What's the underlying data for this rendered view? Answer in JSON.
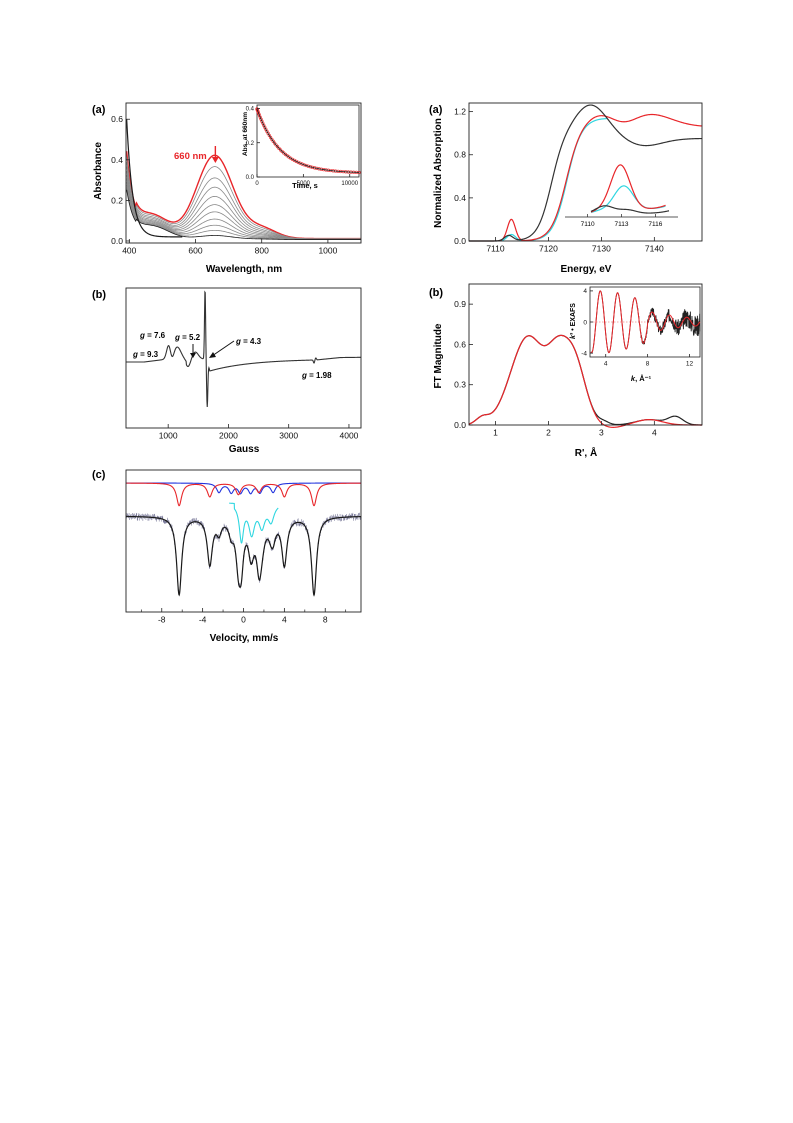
{
  "panels": {
    "uv": {
      "label": "(a)"
    },
    "epr": {
      "label": "(b)"
    },
    "mossbauer": {
      "label": "(c)"
    },
    "xanes": {
      "label": "(a)"
    },
    "exafs": {
      "label": "(b)"
    }
  },
  "colors": {
    "red": "#e8262a",
    "black": "#1a1a1a",
    "gray": "#8a8a8a",
    "cyan": "#2fd6e0",
    "blue": "#2233dd",
    "data_points": "#7a7a9a"
  },
  "chart_data": [
    {
      "id": "uv",
      "type": "line",
      "xlabel": "Wavelength, nm",
      "ylabel": "Absorbance",
      "xlim": [
        390,
        1100
      ],
      "ylim": [
        -0.01,
        0.68
      ],
      "xticks": [
        "400",
        "600",
        "800",
        "1000"
      ],
      "yticks": [
        "0.0",
        "0.2",
        "0.4",
        "0.6"
      ],
      "annotation": "660 nm",
      "series_peak_660": [
        0.41,
        0.355,
        0.3,
        0.255,
        0.21,
        0.17,
        0.135,
        0.1,
        0.07,
        0.045,
        0.02
      ],
      "inset": {
        "type": "scatter",
        "xlabel": "Time, s",
        "ylabel": "Abs. at 660nm",
        "xlim": [
          0,
          11000
        ],
        "ylim": [
          0,
          0.42
        ],
        "xticks": [
          "0",
          "5000",
          "10000"
        ],
        "yticks": [
          "0.0",
          "0.2",
          "0.4"
        ],
        "decay": {
          "A0": 0.375,
          "tau": 2500,
          "offset": 0.022
        }
      }
    },
    {
      "id": "epr",
      "type": "line",
      "xlabel": "Gauss",
      "xlim": [
        300,
        4200
      ],
      "xticks": [
        "1000",
        "2000",
        "3000",
        "4000"
      ],
      "annotations": [
        {
          "label": "g",
          "value": " = 9.3"
        },
        {
          "label": "g",
          "value": " = 7.6"
        },
        {
          "label": "g",
          "value": " = 5.2"
        },
        {
          "label": "g",
          "value": " = 4.3"
        },
        {
          "label": "g",
          "value": " = 1.98"
        }
      ]
    },
    {
      "id": "mossbauer",
      "type": "line",
      "xlabel": "Velocity, mm/s",
      "xlim": [
        -11.5,
        11.5
      ],
      "xticks": [
        "-8",
        "-4",
        "0",
        "4",
        "8"
      ],
      "sextet_red": [
        -6.3,
        -3.3,
        -0.5,
        1.5,
        4.0,
        6.9
      ],
      "sextet_blue": [
        -2.4,
        -1.2,
        -0.3,
        0.7,
        1.6,
        2.9
      ],
      "quadrupole_cyan": [
        -0.2,
        0.8,
        1.8,
        2.7
      ]
    },
    {
      "id": "xanes",
      "type": "line",
      "xlabel": "Energy, eV",
      "ylabel": "Normalized Absorption",
      "xlim": [
        7105,
        7149
      ],
      "ylim": [
        0,
        1.28
      ],
      "xticks": [
        "7110",
        "7120",
        "7130",
        "7140"
      ],
      "yticks": [
        "0.0",
        "0.4",
        "0.8",
        "1.2"
      ],
      "inset": {
        "xticks": [
          "7110",
          "7113",
          "7116"
        ],
        "xlim": [
          7108,
          7118
        ]
      }
    },
    {
      "id": "exafs",
      "type": "line",
      "xlabel": "R', Å",
      "ylabel": "FT Magnitude",
      "xlim": [
        0.5,
        4.9
      ],
      "ylim": [
        0,
        1.05
      ],
      "xticks": [
        "1",
        "2",
        "3",
        "4"
      ],
      "yticks": [
        "0.0",
        "0.3",
        "0.6",
        "0.9"
      ],
      "inset": {
        "xlabel": "k, Å⁻¹",
        "ylabel": "k³ • EXAFS",
        "xlim": [
          2.5,
          13
        ],
        "ylim": [
          -4.5,
          4.5
        ],
        "xticks": [
          "4",
          "8",
          "12"
        ],
        "yticks": [
          "-4",
          "0",
          "4"
        ]
      }
    }
  ]
}
